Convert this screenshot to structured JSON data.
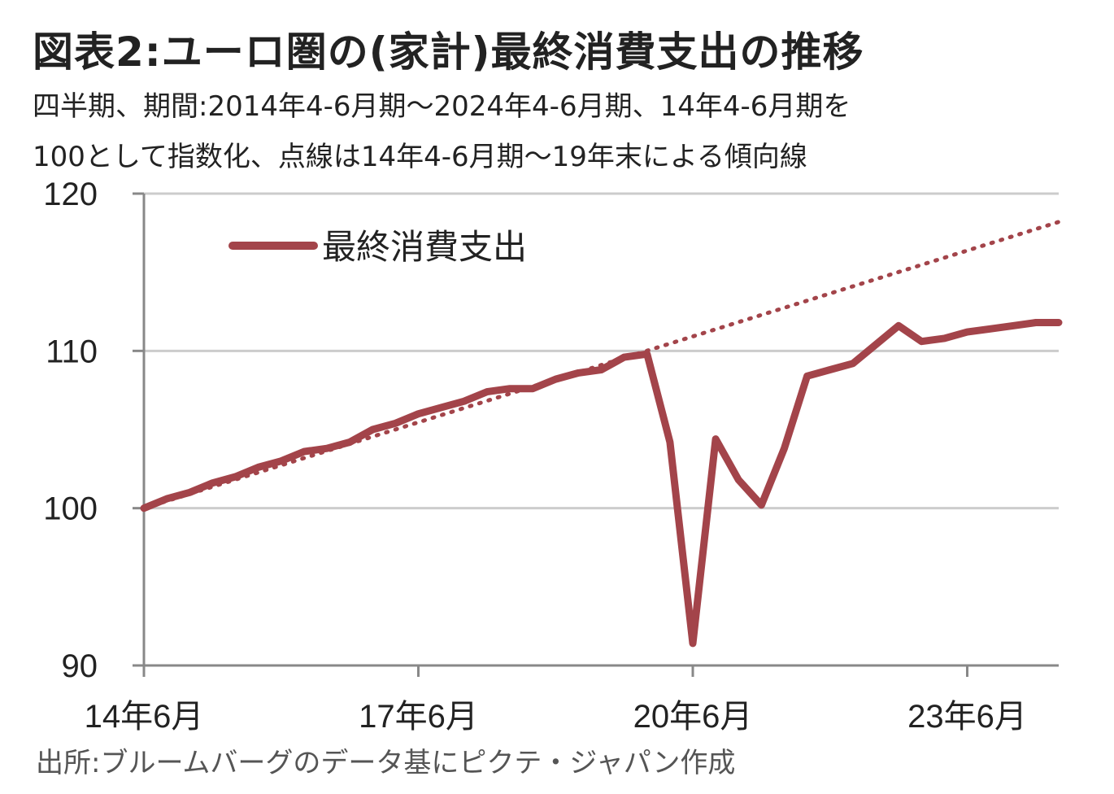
{
  "title": "図表2:ユーロ圏の(家計)最終消費支出の推移",
  "subtitle_lines": [
    "四半期、期間:2014年4-6月期〜2024年4-6月期、14年4-6月期を",
    "100として指数化、点線は14年4-6月期〜19年末による傾向線"
  ],
  "source": "出所:ブルームバーグのデータ基にピクテ・ジャパン作成",
  "colors": {
    "series": "#a3444a",
    "grid": "#cccccc",
    "axis": "#888888"
  },
  "chart_data": {
    "type": "line",
    "ylim": [
      90,
      120
    ],
    "yticks": [
      90,
      100,
      110,
      120
    ],
    "xticks": [
      {
        "index": 0,
        "label": "14年6月"
      },
      {
        "index": 12,
        "label": "17年6月"
      },
      {
        "index": 24,
        "label": "20年6月"
      },
      {
        "index": 36,
        "label": "23年6月"
      }
    ],
    "x_count": 41,
    "legend": {
      "label": "最終消費支出",
      "position": "top-left"
    },
    "series": [
      {
        "name": "最終消費支出",
        "style": "solid",
        "values": [
          100.0,
          100.6,
          101.0,
          101.6,
          102.0,
          102.6,
          103.0,
          103.6,
          103.8,
          104.2,
          105.0,
          105.4,
          106.0,
          106.4,
          106.8,
          107.4,
          107.6,
          107.6,
          108.2,
          108.6,
          108.8,
          109.6,
          109.8,
          104.2,
          91.4,
          104.4,
          101.8,
          100.2,
          103.8,
          108.4,
          108.8,
          109.2,
          110.4,
          111.6,
          110.6,
          110.8,
          111.2,
          111.4,
          111.6,
          111.8,
          111.8
        ]
      },
      {
        "name": "",
        "style": "dotted",
        "x_start": 0,
        "x_end": 40,
        "values_start": 100.0,
        "values_end": 118.2
      }
    ]
  }
}
